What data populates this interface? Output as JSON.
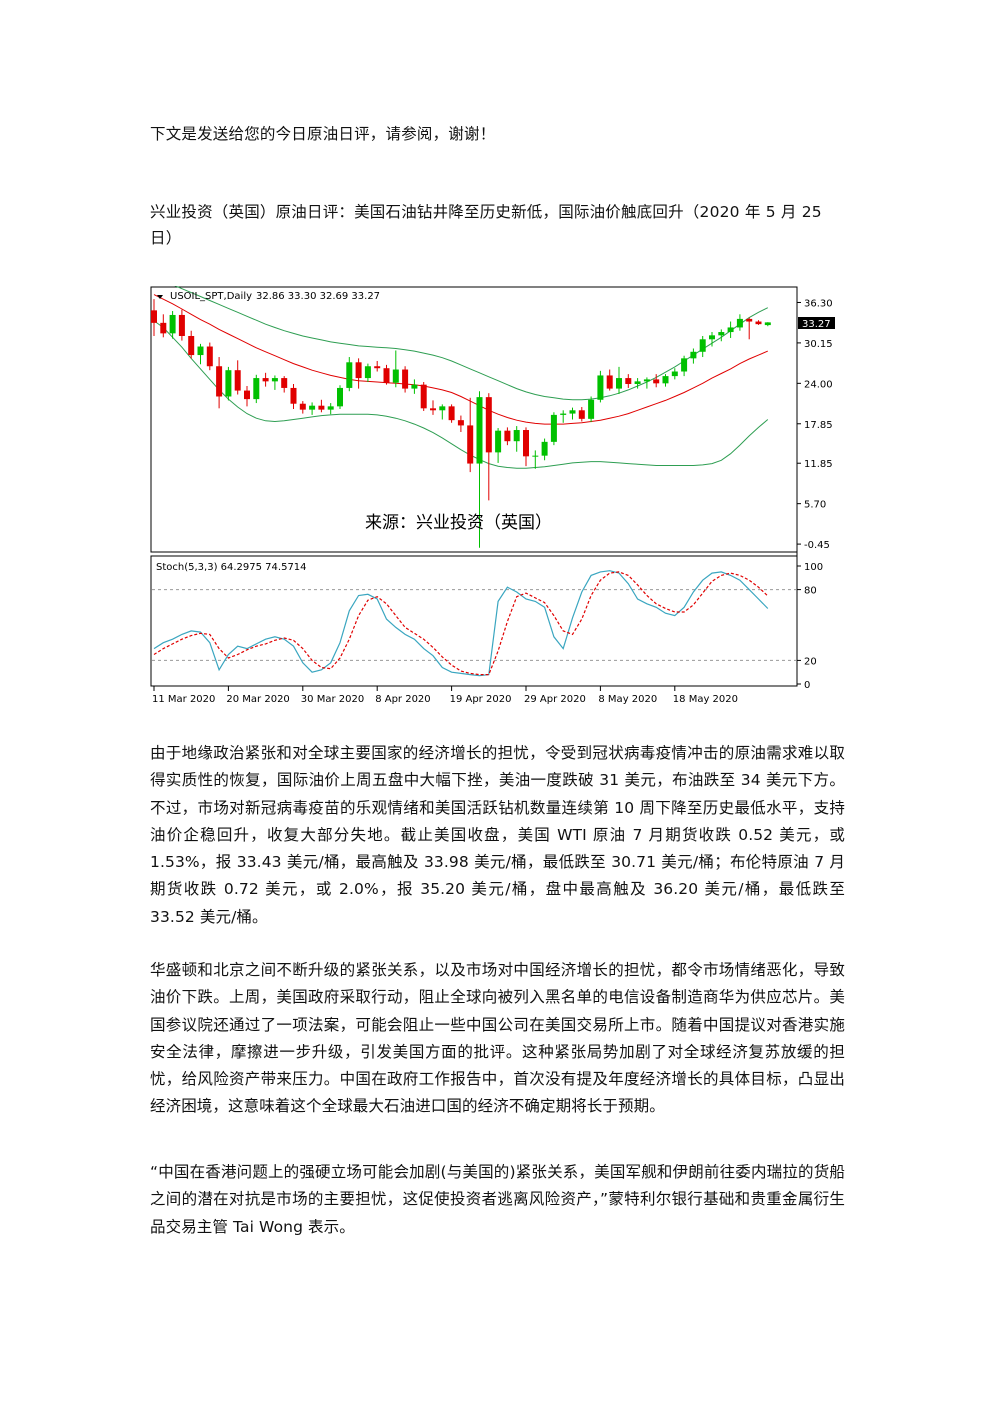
{
  "document": {
    "intro": "下文是发送给您的今日原油日评，请参阅，谢谢！",
    "title": "兴业投资（英国）原油日评：美国石油钻井降至历史新低，国际油价触底回升（2020 年 5 月 25 日）",
    "paragraphs": [
      "由于地缘政治紧张和对全球主要国家的经济增长的担忧，令受到冠状病毒疫情冲击的原油需求难以取得实质性的恢复，国际油价上周五盘中大幅下挫，美油一度跌破 31 美元，布油跌至 34 美元下方。不过，市场对新冠病毒疫苗的乐观情绪和美国活跃钻机数量连续第 10 周下降至历史最低水平，支持油价企稳回升，收复大部分失地。截止美国收盘，美国 WTI 原油 7 月期货收跌 0.52 美元，或 1.53%，报 33.43 美元/桶，最高触及 33.98 美元/桶，最低跌至 30.71 美元/桶；布伦特原油 7 月期货收跌 0.72 美元，或 2.0%，报 35.20 美元/桶，盘中最高触及 36.20 美元/桶，最低跌至 33.52 美元/桶。",
      "华盛顿和北京之间不断升级的紧张关系，以及市场对中国经济增长的担忧，都令市场情绪恶化，导致油价下跌。上周，美国政府采取行动，阻止全球向被列入黑名单的电信设备制造商华为供应芯片。美国参议院还通过了一项法案，可能会阻止一些中国公司在美国交易所上市。随着中国提议对香港实施安全法律，摩擦进一步升级，引发美国方面的批评。这种紧张局势加剧了对全球经济复苏放缓的担忧，给风险资产带来压力。中国在政府工作报告中，首次没有提及年度经济增长的具体目标，凸显出经济困境，这意味着这个全球最大石油进口国的经济不确定期将长于预期。",
      "“中国在香港问题上的强硬立场可能会加剧(与美国的)紧张关系，美国军舰和伊朗前往委内瑞拉的货船之间的潜在对抗是市场的主要担忧，这促使投资者逃离风险资产，”蒙特利尔银行基础和贵重金属衍生品交易主管 Tai Wong 表示。"
    ]
  },
  "chart_data": {
    "type": "candlestick",
    "symbol_header": "USOIL_SPT,Daily",
    "ohlc_header": "32.86 33.30 32.69 33.27",
    "source_label": "来源：兴业投资（英国）",
    "price_ticks": [
      "36.30",
      "30.15",
      "24.00",
      "17.85",
      "11.85",
      "5.70",
      "-0.45"
    ],
    "price_tick_values": [
      36.3,
      30.15,
      24.0,
      17.85,
      11.85,
      5.7,
      -0.45
    ],
    "current_price_label": "33.27",
    "ylim": [
      -1.5,
      38.5
    ],
    "date_ticks": [
      "11 Mar 2020",
      "20 Mar 2020",
      "30 Mar 2020",
      "8 Apr 2020",
      "19 Apr 2020",
      "29 Apr 2020",
      "8 May 2020",
      "18 May 2020"
    ],
    "date_tick_bar_index": [
      0,
      8,
      16,
      24,
      32,
      40,
      48,
      56
    ],
    "colors": {
      "up": "#00c000",
      "down": "#e00000",
      "ma": "#e00000",
      "bands": "#2e9e52",
      "stoch_k": "#3aa6c0",
      "stoch_d": "#e00000"
    },
    "candles": [
      [
        35.1,
        36.8,
        31.2,
        33.2
      ],
      [
        33.2,
        34.5,
        31.0,
        31.6
      ],
      [
        31.6,
        35.0,
        30.8,
        34.4
      ],
      [
        34.4,
        35.2,
        30.5,
        31.2
      ],
      [
        31.2,
        32.0,
        27.8,
        28.3
      ],
      [
        28.3,
        30.0,
        26.9,
        29.6
      ],
      [
        29.6,
        30.2,
        26.0,
        26.6
      ],
      [
        26.6,
        28.0,
        20.2,
        22.0
      ],
      [
        22.0,
        26.5,
        21.4,
        26.0
      ],
      [
        26.0,
        27.5,
        22.3,
        22.9
      ],
      [
        22.9,
        23.6,
        20.5,
        21.6
      ],
      [
        21.6,
        25.3,
        21.0,
        24.8
      ],
      [
        24.8,
        25.6,
        23.5,
        24.3
      ],
      [
        24.3,
        25.2,
        23.0,
        24.8
      ],
      [
        24.8,
        25.1,
        22.6,
        23.3
      ],
      [
        23.3,
        23.9,
        20.1,
        20.9
      ],
      [
        20.9,
        21.3,
        19.4,
        20.0
      ],
      [
        20.0,
        21.1,
        19.2,
        20.6
      ],
      [
        20.6,
        21.5,
        19.6,
        20.0
      ],
      [
        20.0,
        21.0,
        19.3,
        20.5
      ],
      [
        20.5,
        23.7,
        20.1,
        23.3
      ],
      [
        23.3,
        28.0,
        22.8,
        27.2
      ],
      [
        27.2,
        27.8,
        23.2,
        24.8
      ],
      [
        24.8,
        27.0,
        24.2,
        26.6
      ],
      [
        26.6,
        27.4,
        25.8,
        26.3
      ],
      [
        26.3,
        26.8,
        23.8,
        24.1
      ],
      [
        24.1,
        29.0,
        23.4,
        26.1
      ],
      [
        26.1,
        26.6,
        22.6,
        23.2
      ],
      [
        23.2,
        24.6,
        22.4,
        23.8
      ],
      [
        23.8,
        24.2,
        19.8,
        20.2
      ],
      [
        20.2,
        21.4,
        19.2,
        19.9
      ],
      [
        19.9,
        20.8,
        18.5,
        20.5
      ],
      [
        20.5,
        20.8,
        18.0,
        18.4
      ],
      [
        18.4,
        19.1,
        16.6,
        17.6
      ],
      [
        17.6,
        21.8,
        10.5,
        11.8
      ],
      [
        11.8,
        22.8,
        -1.0,
        21.9
      ],
      [
        21.9,
        22.5,
        6.2,
        13.5
      ],
      [
        13.5,
        17.2,
        11.9,
        16.8
      ],
      [
        16.8,
        17.3,
        14.6,
        15.2
      ],
      [
        15.2,
        17.5,
        13.6,
        16.9
      ],
      [
        16.9,
        17.3,
        11.4,
        12.9
      ],
      [
        12.9,
        13.8,
        11.0,
        13.0
      ],
      [
        13.0,
        15.6,
        12.3,
        15.1
      ],
      [
        15.1,
        19.6,
        14.6,
        19.2
      ],
      [
        19.2,
        19.9,
        18.0,
        19.4
      ],
      [
        19.4,
        20.3,
        18.5,
        19.9
      ],
      [
        19.9,
        20.4,
        18.2,
        18.6
      ],
      [
        18.6,
        22.0,
        18.1,
        21.5
      ],
      [
        21.5,
        25.9,
        21.1,
        25.2
      ],
      [
        25.2,
        26.1,
        22.9,
        23.2
      ],
      [
        23.2,
        26.5,
        22.4,
        24.8
      ],
      [
        24.8,
        25.4,
        23.3,
        23.9
      ],
      [
        23.9,
        24.8,
        23.2,
        24.3
      ],
      [
        24.3,
        24.9,
        23.2,
        24.6
      ],
      [
        24.6,
        25.4,
        23.4,
        24.0
      ],
      [
        24.0,
        25.4,
        23.5,
        25.1
      ],
      [
        25.1,
        26.3,
        24.6,
        25.8
      ],
      [
        25.8,
        28.2,
        25.1,
        27.8
      ],
      [
        27.8,
        29.3,
        27.0,
        28.8
      ],
      [
        28.8,
        31.2,
        28.0,
        30.7
      ],
      [
        30.7,
        31.8,
        29.6,
        31.3
      ],
      [
        31.3,
        32.2,
        30.4,
        31.8
      ],
      [
        31.8,
        33.4,
        30.9,
        32.5
      ],
      [
        32.5,
        34.5,
        32.0,
        33.8
      ],
      [
        33.8,
        34.0,
        30.7,
        33.4
      ],
      [
        33.4,
        33.6,
        32.9,
        33.0
      ],
      [
        32.86,
        33.3,
        32.69,
        33.27
      ]
    ],
    "moving_average": [
      37.5,
      36.8,
      36.1,
      35.3,
      34.5,
      33.7,
      33.0,
      32.2,
      31.5,
      30.8,
      30.1,
      29.4,
      28.8,
      28.2,
      27.6,
      27.0,
      26.5,
      26.0,
      25.6,
      25.2,
      24.9,
      24.6,
      24.4,
      24.3,
      24.2,
      24.1,
      24.0,
      23.9,
      23.8,
      23.6,
      23.3,
      23.0,
      22.6,
      22.0,
      21.3,
      20.6,
      19.9,
      19.3,
      18.8,
      18.4,
      18.1,
      17.9,
      17.8,
      17.8,
      17.8,
      17.9,
      18.0,
      18.2,
      18.4,
      18.7,
      19.0,
      19.4,
      19.9,
      20.4,
      20.9,
      21.4,
      22.0,
      22.6,
      23.3,
      24.0,
      24.8,
      25.5,
      26.2,
      27.0,
      27.7,
      28.3,
      28.9
    ],
    "upper_band": [
      40.0,
      39.5,
      39.0,
      38.4,
      37.8,
      37.2,
      36.6,
      36.0,
      35.4,
      34.8,
      34.2,
      33.6,
      33.0,
      32.5,
      32.0,
      31.6,
      31.2,
      30.9,
      30.6,
      30.3,
      30.1,
      29.9,
      29.7,
      29.6,
      29.5,
      29.4,
      29.3,
      29.1,
      28.9,
      28.6,
      28.3,
      27.9,
      27.4,
      26.8,
      26.2,
      25.6,
      25.0,
      24.4,
      23.8,
      23.2,
      22.7,
      22.3,
      22.0,
      21.8,
      21.6,
      21.5,
      21.5,
      21.6,
      21.8,
      22.1,
      22.5,
      23.0,
      23.6,
      24.2,
      24.9,
      25.7,
      26.5,
      27.4,
      28.3,
      29.2,
      30.1,
      31.0,
      32.0,
      33.0,
      34.0,
      34.8,
      35.5
    ],
    "lower_band": [
      33.5,
      32.5,
      31.0,
      29.5,
      27.8,
      26.2,
      24.6,
      23.0,
      21.6,
      20.4,
      19.4,
      18.7,
      18.3,
      18.2,
      18.3,
      18.5,
      18.7,
      18.9,
      19.1,
      19.2,
      19.3,
      19.3,
      19.3,
      19.3,
      19.2,
      19.0,
      18.7,
      18.3,
      17.8,
      17.2,
      16.5,
      15.7,
      14.8,
      13.9,
      13.1,
      12.4,
      11.8,
      11.4,
      11.2,
      11.1,
      11.1,
      11.2,
      11.3,
      11.5,
      11.7,
      11.9,
      12.0,
      12.1,
      12.1,
      12.0,
      11.9,
      11.8,
      11.7,
      11.6,
      11.5,
      11.5,
      11.5,
      11.5,
      11.5,
      11.6,
      11.8,
      12.3,
      13.3,
      14.6,
      16.0,
      17.3,
      18.5
    ],
    "stoch_label": "Stoch(5,3,3) 64.2975 74.5714",
    "stoch_ticks": [
      "100",
      "80",
      "20",
      "0"
    ],
    "stoch_tick_values": [
      100,
      80,
      20,
      0
    ],
    "stoch_k": [
      30,
      35,
      38,
      42,
      45,
      44,
      35,
      12,
      25,
      32,
      30,
      34,
      38,
      40,
      38,
      32,
      18,
      10,
      12,
      18,
      35,
      62,
      75,
      76,
      72,
      55,
      48,
      42,
      38,
      30,
      24,
      14,
      10,
      9,
      8,
      7,
      8,
      70,
      82,
      78,
      72,
      70,
      65,
      40,
      30,
      56,
      78,
      92,
      95,
      96,
      94,
      85,
      72,
      68,
      65,
      60,
      58,
      65,
      78,
      88,
      94,
      95,
      92,
      88,
      80,
      72,
      64
    ],
    "stoch_d": [
      25,
      30,
      34,
      38,
      41,
      43,
      42,
      30,
      22,
      25,
      29,
      32,
      34,
      37,
      39,
      37,
      30,
      20,
      14,
      13,
      22,
      38,
      58,
      71,
      74,
      68,
      58,
      48,
      43,
      38,
      31,
      23,
      16,
      11,
      9,
      8,
      8,
      28,
      53,
      74,
      77,
      73,
      69,
      58,
      45,
      42,
      55,
      75,
      88,
      94,
      95,
      92,
      84,
      75,
      68,
      64,
      61,
      61,
      67,
      77,
      87,
      92,
      94,
      92,
      88,
      82,
      74.57
    ]
  }
}
